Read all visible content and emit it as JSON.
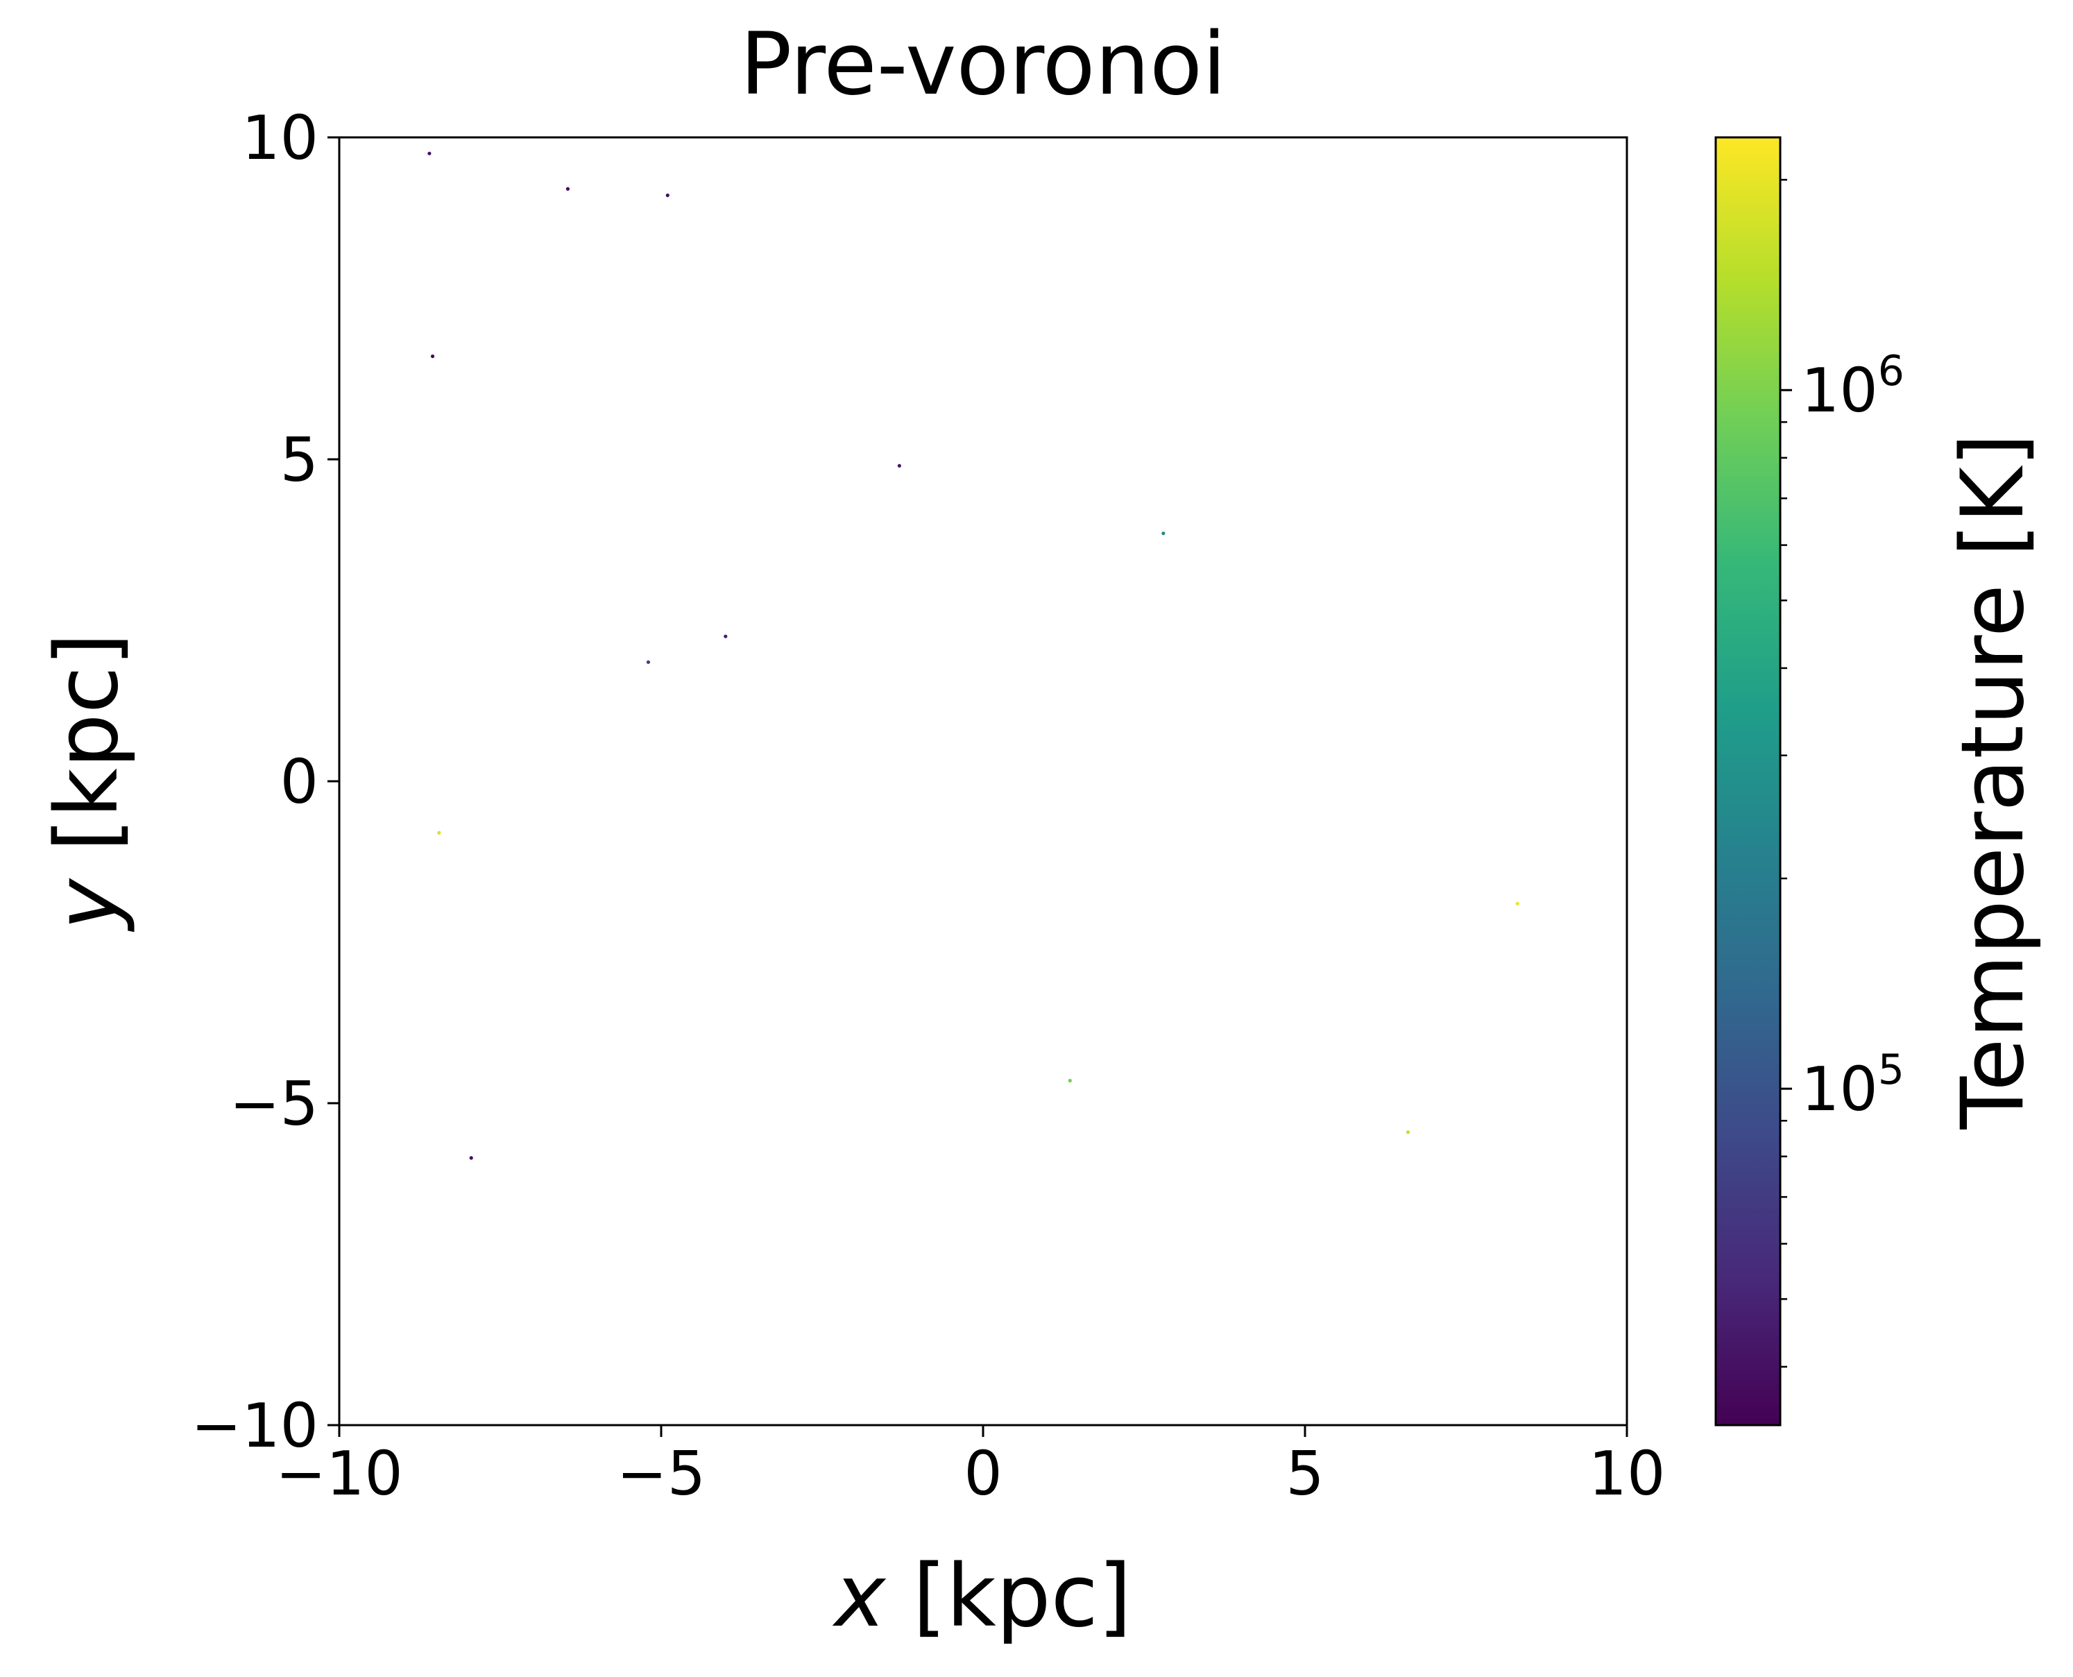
{
  "chart_data": {
    "type": "scatter",
    "title": "Pre-voronoi",
    "xlabel_var": "x",
    "xlabel_unit": " [kpc]",
    "ylabel_var": "y",
    "ylabel_unit": " [kpc]",
    "xlim": [
      -10,
      10
    ],
    "ylim": [
      -10,
      10
    ],
    "xticks": [
      {
        "value": -10,
        "label": "−10"
      },
      {
        "value": -5,
        "label": "−5"
      },
      {
        "value": 0,
        "label": "0"
      },
      {
        "value": 5,
        "label": "5"
      },
      {
        "value": 10,
        "label": "10"
      }
    ],
    "yticks": [
      {
        "value": -10,
        "label": "−10"
      },
      {
        "value": -5,
        "label": "−5"
      },
      {
        "value": 0,
        "label": "0"
      },
      {
        "value": 5,
        "label": "5"
      },
      {
        "value": 10,
        "label": "10"
      }
    ],
    "grid": false,
    "points": [
      {
        "x": -8.6,
        "y": 9.75,
        "temperature": 40000
      },
      {
        "x": -6.45,
        "y": 9.2,
        "temperature": 38000
      },
      {
        "x": -4.9,
        "y": 9.1,
        "temperature": 40000
      },
      {
        "x": -8.55,
        "y": 6.6,
        "temperature": 36000
      },
      {
        "x": -1.3,
        "y": 4.9,
        "temperature": 42000
      },
      {
        "x": 2.8,
        "y": 3.85,
        "temperature": 250000
      },
      {
        "x": -4.0,
        "y": 2.25,
        "temperature": 45000
      },
      {
        "x": -5.2,
        "y": 1.85,
        "temperature": 70000
      },
      {
        "x": -8.45,
        "y": -0.8,
        "temperature": 1800000
      },
      {
        "x": 8.3,
        "y": -1.9,
        "temperature": 2000000
      },
      {
        "x": 1.35,
        "y": -4.65,
        "temperature": 900000
      },
      {
        "x": 6.6,
        "y": -5.45,
        "temperature": 1600000
      },
      {
        "x": -7.95,
        "y": -5.85,
        "temperature": 38000
      }
    ],
    "colorbar": {
      "label": "Temperature [K]",
      "colormap": "viridis",
      "scale": "log",
      "range": [
        33000,
        2300000
      ],
      "major_ticks": [
        {
          "value": 100000,
          "base": "10",
          "exp": "5"
        },
        {
          "value": 1000000,
          "base": "10",
          "exp": "6"
        }
      ],
      "minor_ticks": [
        40000,
        50000,
        60000,
        70000,
        80000,
        90000,
        200000,
        300000,
        400000,
        500000,
        600000,
        700000,
        800000,
        900000,
        2000000
      ],
      "colors": [
        "#440154",
        "#482878",
        "#3e4989",
        "#31688e",
        "#26828e",
        "#1f9e89",
        "#35b779",
        "#6ece58",
        "#b5de2b",
        "#fde725"
      ]
    }
  }
}
